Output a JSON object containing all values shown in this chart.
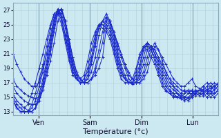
{
  "title": "Température (°c)",
  "ylabel_ticks": [
    13,
    15,
    17,
    19,
    21,
    23,
    25,
    27
  ],
  "day_labels": [
    "Ven",
    "Sam",
    "Dim",
    "Lun"
  ],
  "day_positions": [
    0.333,
    1.0,
    1.667,
    2.333
  ],
  "xlim": [
    0,
    2.667
  ],
  "ylim": [
    12.5,
    28.0
  ],
  "bg_color": "#cce8f0",
  "grid_minor_color": "#b0ccda",
  "grid_major_color": "#88aabb",
  "line_color": "#1a2acc",
  "n_days": 3.333,
  "series": [
    [
      21.0,
      19.5,
      18.5,
      17.5,
      17.0,
      16.5,
      16.5,
      17.0,
      19.0,
      21.0,
      23.0,
      25.5,
      27.2,
      26.0,
      23.5,
      21.5,
      19.5,
      18.0,
      17.5,
      17.0,
      17.0,
      17.5,
      18.0,
      19.0,
      20.5,
      24.5,
      25.5,
      24.0,
      22.5,
      21.0,
      19.5,
      18.5,
      17.5,
      17.0,
      17.0,
      17.5,
      18.5,
      20.5,
      22.0,
      21.5,
      20.5,
      19.5,
      18.5,
      17.5,
      17.0,
      16.5,
      16.5,
      17.0,
      17.5,
      16.5,
      16.2,
      16.0,
      16.0,
      16.2,
      16.5,
      16.8
    ],
    [
      17.5,
      16.5,
      16.0,
      15.5,
      15.2,
      15.0,
      14.8,
      15.0,
      16.0,
      18.0,
      20.0,
      22.5,
      25.5,
      27.0,
      25.5,
      23.0,
      20.5,
      18.5,
      17.5,
      17.0,
      17.0,
      17.5,
      18.5,
      20.5,
      22.5,
      25.5,
      25.5,
      24.0,
      22.5,
      21.0,
      19.5,
      18.0,
      17.5,
      17.0,
      17.0,
      18.0,
      19.5,
      21.5,
      22.5,
      21.5,
      20.0,
      18.5,
      17.5,
      17.0,
      16.5,
      16.0,
      15.8,
      15.5,
      15.5,
      15.8,
      16.0,
      16.5,
      16.0,
      15.8,
      15.5,
      15.8
    ],
    [
      16.5,
      15.5,
      15.0,
      14.5,
      14.2,
      14.0,
      14.0,
      14.5,
      16.0,
      18.5,
      21.0,
      24.0,
      26.5,
      27.2,
      25.5,
      23.0,
      20.5,
      18.5,
      17.5,
      17.0,
      17.0,
      17.5,
      19.0,
      21.5,
      24.0,
      26.0,
      25.5,
      24.0,
      22.0,
      20.5,
      19.0,
      17.5,
      17.0,
      17.0,
      17.5,
      18.5,
      20.5,
      22.0,
      21.5,
      20.5,
      19.5,
      18.5,
      17.5,
      16.5,
      16.0,
      15.5,
      15.0,
      15.0,
      15.2,
      15.5,
      16.0,
      16.0,
      15.8,
      15.5,
      15.0,
      15.5
    ],
    [
      15.5,
      14.5,
      14.0,
      13.5,
      13.2,
      13.0,
      13.5,
      14.5,
      16.5,
      19.0,
      21.5,
      24.5,
      26.8,
      27.2,
      25.5,
      22.5,
      20.0,
      18.0,
      17.0,
      17.0,
      17.5,
      18.5,
      20.5,
      23.5,
      25.5,
      26.5,
      25.5,
      23.5,
      21.5,
      19.5,
      18.0,
      17.0,
      16.8,
      17.0,
      18.0,
      19.5,
      21.5,
      22.0,
      21.5,
      20.5,
      19.0,
      18.0,
      17.0,
      16.5,
      15.5,
      15.2,
      15.0,
      14.8,
      15.0,
      15.5,
      16.0,
      15.8,
      15.5,
      15.0,
      15.5,
      16.0
    ],
    [
      15.0,
      14.0,
      13.5,
      13.0,
      13.0,
      13.0,
      13.5,
      15.0,
      17.0,
      19.5,
      22.0,
      25.0,
      27.0,
      27.0,
      25.0,
      22.0,
      19.5,
      17.5,
      17.0,
      17.0,
      17.5,
      19.5,
      22.0,
      24.5,
      25.5,
      26.0,
      25.0,
      23.0,
      21.0,
      19.0,
      17.5,
      17.0,
      16.8,
      17.0,
      18.5,
      20.5,
      22.5,
      22.0,
      21.0,
      20.0,
      18.5,
      17.5,
      16.5,
      16.0,
      15.5,
      15.0,
      14.8,
      14.5,
      15.0,
      15.5,
      16.0,
      15.5,
      15.0,
      15.5,
      16.0,
      16.5
    ],
    [
      14.5,
      13.5,
      13.0,
      13.0,
      13.0,
      13.0,
      13.5,
      15.5,
      17.5,
      20.0,
      22.5,
      25.5,
      27.0,
      26.5,
      24.5,
      21.5,
      19.0,
      17.5,
      17.0,
      17.0,
      18.0,
      20.0,
      22.5,
      24.5,
      25.5,
      25.5,
      24.5,
      22.5,
      20.5,
      18.5,
      17.5,
      17.0,
      17.0,
      17.5,
      19.0,
      21.5,
      22.5,
      22.0,
      21.0,
      19.5,
      18.0,
      17.0,
      16.0,
      15.5,
      15.0,
      14.8,
      14.5,
      15.0,
      15.5,
      16.0,
      15.5,
      15.2,
      15.5,
      16.0,
      16.5,
      17.0
    ],
    [
      14.5,
      13.5,
      13.0,
      13.0,
      13.0,
      13.5,
      14.5,
      16.5,
      18.5,
      21.0,
      23.5,
      26.0,
      27.0,
      26.0,
      23.5,
      21.0,
      18.5,
      17.5,
      17.0,
      17.5,
      18.5,
      20.5,
      23.0,
      25.0,
      25.5,
      25.0,
      24.0,
      22.0,
      20.0,
      18.5,
      17.5,
      17.0,
      17.0,
      18.0,
      19.5,
      22.0,
      22.5,
      21.5,
      20.5,
      19.0,
      17.5,
      16.5,
      15.8,
      15.5,
      15.0,
      14.8,
      15.0,
      15.5,
      16.0,
      15.5,
      15.2,
      15.5,
      16.0,
      16.5,
      17.0,
      16.5
    ],
    [
      14.5,
      13.5,
      13.0,
      13.0,
      13.0,
      14.0,
      15.5,
      17.5,
      19.5,
      22.0,
      24.5,
      26.5,
      27.0,
      25.5,
      23.0,
      20.5,
      18.5,
      17.5,
      17.0,
      17.5,
      19.0,
      21.5,
      23.5,
      25.0,
      25.0,
      24.5,
      23.5,
      21.5,
      19.5,
      18.0,
      17.5,
      17.0,
      17.0,
      18.5,
      20.5,
      22.0,
      22.0,
      21.5,
      20.0,
      18.5,
      17.0,
      16.0,
      15.5,
      15.2,
      15.0,
      15.0,
      15.5,
      16.0,
      15.8,
      15.2,
      15.5,
      16.0,
      16.5,
      17.0,
      16.5,
      16.0
    ],
    [
      14.5,
      13.5,
      13.5,
      13.5,
      14.0,
      15.5,
      17.0,
      19.0,
      21.0,
      23.0,
      25.0,
      26.5,
      26.5,
      25.0,
      22.5,
      20.0,
      18.0,
      17.5,
      17.5,
      18.0,
      20.0,
      22.5,
      24.0,
      25.0,
      24.5,
      24.0,
      23.0,
      21.0,
      19.0,
      17.5,
      17.0,
      17.0,
      17.5,
      19.0,
      21.0,
      22.0,
      21.5,
      20.5,
      19.5,
      18.0,
      16.5,
      15.8,
      15.5,
      15.0,
      15.0,
      15.5,
      16.0,
      15.8,
      15.2,
      15.5,
      16.0,
      16.5,
      17.0,
      16.5,
      16.0,
      16.5
    ]
  ]
}
